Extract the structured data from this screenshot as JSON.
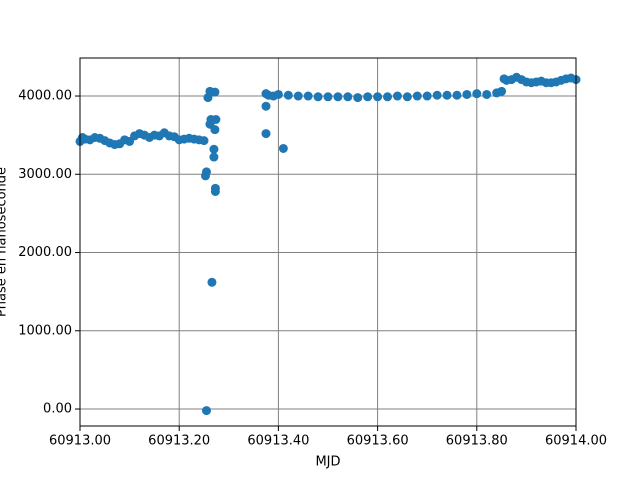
{
  "chart_data": {
    "type": "scatter",
    "x_label": "MJD",
    "y_label": "Phase en nanoseconde",
    "color": "#1f77b4",
    "grid": true,
    "xlim": [
      60913.0,
      60914.0
    ],
    "ylim": [
      -217,
      4486
    ],
    "xticks": [
      {
        "value": 60913.0,
        "label": "60913.00"
      },
      {
        "value": 60913.2,
        "label": "60913.20"
      },
      {
        "value": 60913.4,
        "label": "60913.40"
      },
      {
        "value": 60913.6,
        "label": "60913.60"
      },
      {
        "value": 60913.8,
        "label": "60913.80"
      },
      {
        "value": 60914.0,
        "label": "60914.00"
      }
    ],
    "yticks": [
      {
        "value": 0,
        "label": "0.00"
      },
      {
        "value": 1000,
        "label": "1000.00"
      },
      {
        "value": 2000,
        "label": "2000.00"
      },
      {
        "value": 3000,
        "label": "3000.00"
      },
      {
        "value": 4000,
        "label": "4000.00"
      }
    ],
    "x": [
      60913.0,
      60913.005,
      60913.01,
      60913.02,
      60913.03,
      60913.04,
      60913.05,
      60913.06,
      60913.07,
      60913.08,
      60913.09,
      60913.1,
      60913.11,
      60913.12,
      60913.13,
      60913.14,
      60913.15,
      60913.16,
      60913.17,
      60913.18,
      60913.19,
      60913.2,
      60913.21,
      60913.22,
      60913.23,
      60913.24,
      60913.25,
      60913.253,
      60913.255,
      60913.255,
      60913.258,
      60913.262,
      60913.262,
      60913.264,
      60913.266,
      60913.27,
      60913.27,
      60913.272,
      60913.272,
      60913.273,
      60913.273,
      60913.274,
      60913.375,
      60913.375,
      60913.375,
      60913.38,
      60913.39,
      60913.41,
      60913.4,
      60913.42,
      60913.44,
      60913.46,
      60913.48,
      60913.5,
      60913.52,
      60913.54,
      60913.56,
      60913.58,
      60913.6,
      60913.62,
      60913.64,
      60913.66,
      60913.68,
      60913.7,
      60913.72,
      60913.74,
      60913.76,
      60913.78,
      60913.8,
      60913.82,
      60913.84,
      60913.85,
      60913.855,
      60913.86,
      60913.87,
      60913.88,
      60913.89,
      60913.9,
      60913.91,
      60913.92,
      60913.93,
      60913.94,
      60913.95,
      60913.96,
      60913.97,
      60913.98,
      60913.99,
      60914.0
    ],
    "values": [
      3420,
      3470,
      3450,
      3440,
      3470,
      3460,
      3430,
      3400,
      3380,
      3390,
      3440,
      3420,
      3490,
      3520,
      3500,
      3470,
      3500,
      3490,
      3530,
      3490,
      3480,
      3440,
      3450,
      3460,
      3450,
      3440,
      3430,
      2980,
      3030,
      -20,
      3980,
      4060,
      3640,
      3700,
      1620,
      3320,
      3220,
      4050,
      3570,
      2820,
      2780,
      3700,
      3520,
      3870,
      4030,
      4010,
      4000,
      3330,
      4020,
      4010,
      4000,
      4000,
      3990,
      3990,
      3990,
      3990,
      3980,
      3990,
      3990,
      3990,
      4000,
      3990,
      4000,
      4000,
      4010,
      4010,
      4010,
      4020,
      4030,
      4020,
      4040,
      4060,
      4220,
      4200,
      4210,
      4240,
      4210,
      4180,
      4170,
      4180,
      4190,
      4170,
      4170,
      4180,
      4200,
      4220,
      4230,
      4210
    ]
  }
}
